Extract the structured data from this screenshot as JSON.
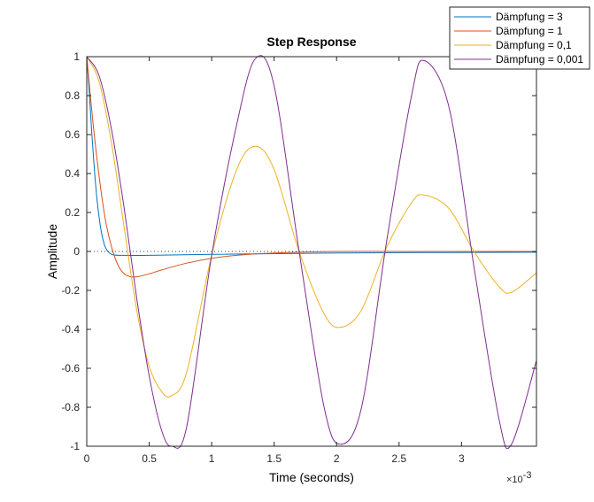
{
  "chart_data": {
    "type": "line",
    "title": "Step Response",
    "xlabel": "Time (seconds)",
    "ylabel": "Amplitude",
    "x_exponent_label": "×10",
    "x_exponent_power": "-3",
    "xlim": [
      0,
      0.0036
    ],
    "ylim": [
      -1,
      1
    ],
    "x_ticks": [
      0,
      0.0005,
      0.001,
      0.0015,
      0.002,
      0.0025,
      0.003
    ],
    "x_tick_labels": [
      "0",
      "0.5",
      "1",
      "1.5",
      "2",
      "2.5",
      "3"
    ],
    "y_ticks": [
      -1,
      -0.8,
      -0.6,
      -0.4,
      -0.2,
      0,
      0.2,
      0.4,
      0.6,
      0.8,
      1
    ],
    "y_tick_labels": [
      "-1",
      "-0.8",
      "-0.6",
      "-0.4",
      "-0.2",
      "0",
      "0.2",
      "0.4",
      "0.6",
      "0.8",
      "1"
    ],
    "grid": false,
    "legend_position": "top-right",
    "zero_reference_line": true,
    "series": [
      {
        "name": "Dämpfung = 3",
        "color": "#0072BD",
        "x": [
          0,
          2e-05,
          4e-05,
          6e-05,
          8e-05,
          0.0001,
          0.00012,
          0.00015,
          0.0002,
          0.0003,
          0.0005,
          0.001,
          0.002,
          0.0036
        ],
        "y": [
          1,
          0.82,
          0.61,
          0.43,
          0.28,
          0.17,
          0.09,
          0.02,
          -0.015,
          -0.02,
          -0.02,
          -0.015,
          -0.008,
          -0.004
        ]
      },
      {
        "name": "Dämpfung = 1",
        "color": "#D95319",
        "x": [
          0,
          5e-05,
          0.0001,
          0.00015,
          0.0002,
          0.00025,
          0.0003,
          0.00035,
          0.0004,
          0.0005,
          0.0006,
          0.0008,
          0.001,
          0.0012,
          0.0015,
          0.002,
          0.0025,
          0.003,
          0.0036
        ],
        "y": [
          1,
          0.66,
          0.38,
          0.16,
          0.02,
          -0.07,
          -0.115,
          -0.13,
          -0.13,
          -0.115,
          -0.095,
          -0.06,
          -0.035,
          -0.02,
          -0.008,
          0,
          0,
          0,
          0
        ]
      },
      {
        "name": "Dämpfung = 0,1",
        "color": "#EDB120",
        "x": [
          0,
          0.0001,
          0.0002,
          0.0003,
          0.0004,
          0.0005,
          0.0006,
          0.00068,
          0.0008,
          0.001,
          0.0012,
          0.00135,
          0.0015,
          0.0017,
          0.0019,
          0.00203,
          0.0022,
          0.0024,
          0.0026,
          0.0027,
          0.0029,
          0.0031,
          0.0033,
          0.0034,
          0.0036
        ],
        "y": [
          1,
          0.87,
          0.55,
          0.12,
          -0.3,
          -0.59,
          -0.72,
          -0.74,
          -0.62,
          -0.02,
          0.42,
          0.54,
          0.42,
          0,
          -0.32,
          -0.39,
          -0.3,
          0.02,
          0.25,
          0.29,
          0.22,
          0,
          -0.18,
          -0.21,
          -0.11
        ]
      },
      {
        "name": "Dämpfung = 0,001",
        "color": "#7E2F8E",
        "x": [
          0,
          0.0001,
          0.0002,
          0.0003,
          0.0004,
          0.0005,
          0.0006,
          0.00068,
          0.0008,
          0.001,
          0.0012,
          0.00135,
          0.0015,
          0.0017,
          0.0019,
          0.00203,
          0.0022,
          0.0024,
          0.0026,
          0.0027,
          0.0029,
          0.0031,
          0.0033,
          0.0034,
          0.0036
        ],
        "y": [
          1,
          0.9,
          0.62,
          0.22,
          -0.24,
          -0.64,
          -0.92,
          -1,
          -0.9,
          -0.02,
          0.65,
          0.99,
          0.85,
          0,
          -0.8,
          -0.99,
          -0.8,
          0.05,
          0.8,
          0.98,
          0.74,
          -0.08,
          -0.86,
          -0.99,
          -0.56
        ]
      }
    ]
  }
}
